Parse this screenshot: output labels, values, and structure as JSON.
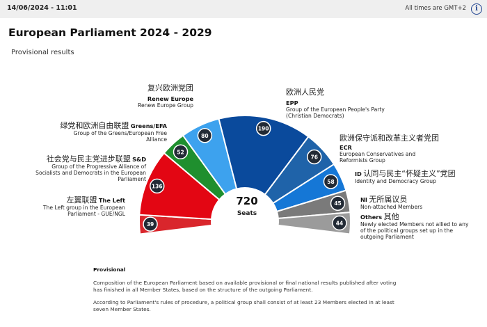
{
  "header": {
    "timestamp": "14/06/2024 - 11:01",
    "tz_note": "All times are GMT+2",
    "info_icon": "info-icon"
  },
  "page": {
    "title": "European Parliament 2024 - 2029",
    "subtitle": "Provisional results"
  },
  "chart_data": {
    "type": "hemicycle",
    "total_seats": 720,
    "total_label": "Seats",
    "groups": [
      {
        "key": "left",
        "abbr": "The Left",
        "cn": "左翼联盟",
        "name": "The Left group in the European Parliament - GUE/NGL",
        "seats": 39,
        "color": "#d9262c"
      },
      {
        "key": "sd",
        "abbr": "S&D",
        "cn": "社会党与民主党进步联盟",
        "name": "Group of the Progressive Alliance of Socialists and Democrats in the European Parliament",
        "seats": 136,
        "color": "#e30613"
      },
      {
        "key": "greens",
        "abbr": "Greens/EFA",
        "cn": "绿党和欧洲自由联盟",
        "name": "Group of the Greens/European Free Alliance",
        "seats": 52,
        "color": "#1f8f2e"
      },
      {
        "key": "renew",
        "abbr": "Renew Europe",
        "cn": "复兴欧洲党团",
        "name": "Renew Europe Group",
        "seats": 80,
        "color": "#3da2ee"
      },
      {
        "key": "epp",
        "abbr": "EPP",
        "cn": "欧洲人民党",
        "name": "Group of the European People's Party (Christian Democrats)",
        "seats": 190,
        "color": "#0a4a9c"
      },
      {
        "key": "ecr",
        "abbr": "ECR",
        "cn": "欧洲保守派和改革主义者党团",
        "name": "European Conservatives and Reformists Group",
        "seats": 76,
        "color": "#1f63a9"
      },
      {
        "key": "id",
        "abbr": "ID",
        "cn": "认同与民主“怀疑主义”党团",
        "name": "Identity and Democracy Group",
        "seats": 58,
        "color": "#1577d6"
      },
      {
        "key": "ni",
        "abbr": "NI",
        "cn": "无所属议员",
        "name": "Non-attached Members",
        "seats": 45,
        "color": "#7a7a7a"
      },
      {
        "key": "others",
        "abbr": "Others",
        "cn": "其他",
        "name": "Newly elected Members not allied to any of the political groups set up in the outgoing Parliament",
        "seats": 44,
        "color": "#9b9b9b"
      }
    ]
  },
  "notes": {
    "heading": "Provisional",
    "p1": "Composition of the European Parliament based on available provisional or final national results published after voting has finished in all Member States, based on the structure of the outgoing Parliament.",
    "p2": "According to Parliament's rules of procedure, a political group shall consist of at least 23 Members elected in at least seven Member States."
  }
}
